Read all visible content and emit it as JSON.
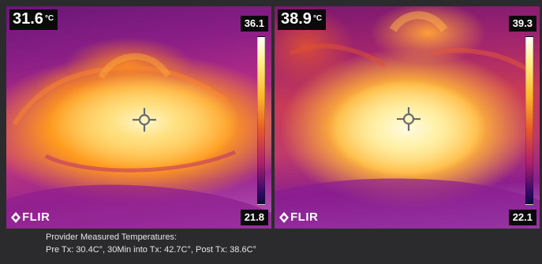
{
  "left_panel": {
    "spot_temp": "31.6",
    "unit": "°C",
    "scale_max": "36.1",
    "scale_min": "21.8",
    "logo": "FLIR"
  },
  "right_panel": {
    "spot_temp": "38.9",
    "unit": "°C",
    "scale_max": "39.3",
    "scale_min": "22.1",
    "logo": "FLIR"
  },
  "caption": {
    "line1": "Provider Measured Temperatures:",
    "line2": "Pre Tx: 30.4C°, 30Min into Tx: 42.7C°, Post Tx: 38.6C°"
  },
  "colors": {
    "background": "#2b2b2d",
    "label_bg": "#0a0a0a",
    "text": "#ffffff"
  },
  "icons": [
    "crosshair-icon",
    "flir-logo-icon"
  ]
}
